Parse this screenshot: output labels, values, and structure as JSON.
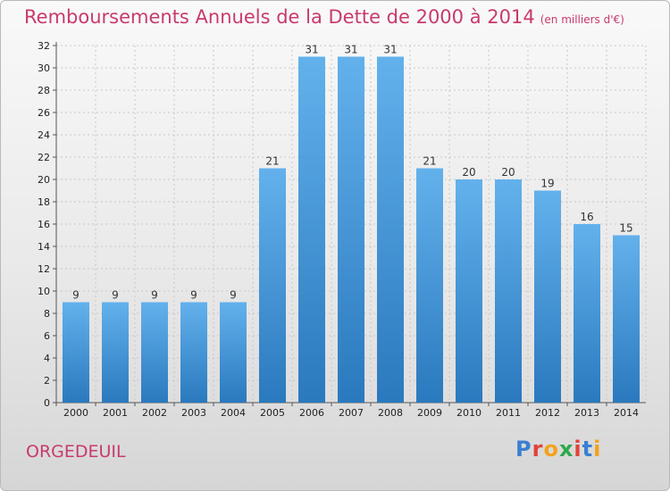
{
  "title": "Remboursements Annuels de la Dette de 2000 à 2014",
  "unit": "(en milliers d'€)",
  "commune": "ORGEDEUIL",
  "logo": {
    "letters": [
      "P",
      "r",
      "o",
      "x",
      "i",
      "t",
      "i"
    ],
    "colors": [
      "#3a7fd0",
      "#e0433b",
      "#f2a31b",
      "#2da84a",
      "#e0433b",
      "#3a7fd0",
      "#f2a31b"
    ]
  },
  "colors": {
    "bar_top": "#63b1ec",
    "bar_bottom": "#2a79be",
    "title": "#c83a6e"
  },
  "chart_data": {
    "type": "bar",
    "title": "Remboursements Annuels de la Dette de 2000 à 2014",
    "categories": [
      "2000",
      "2001",
      "2002",
      "2003",
      "2004",
      "2005",
      "2006",
      "2007",
      "2008",
      "2009",
      "2010",
      "2011",
      "2012",
      "2013",
      "2014"
    ],
    "values": [
      9,
      9,
      9,
      9,
      9,
      21,
      31,
      31,
      31,
      21,
      20,
      20,
      19,
      16,
      15
    ],
    "ylim": [
      0,
      32
    ],
    "yticks": [
      0,
      2,
      4,
      6,
      8,
      10,
      12,
      14,
      16,
      18,
      20,
      22,
      24,
      26,
      28,
      30,
      32
    ],
    "grid": true,
    "xlabel": "",
    "ylabel": ""
  }
}
